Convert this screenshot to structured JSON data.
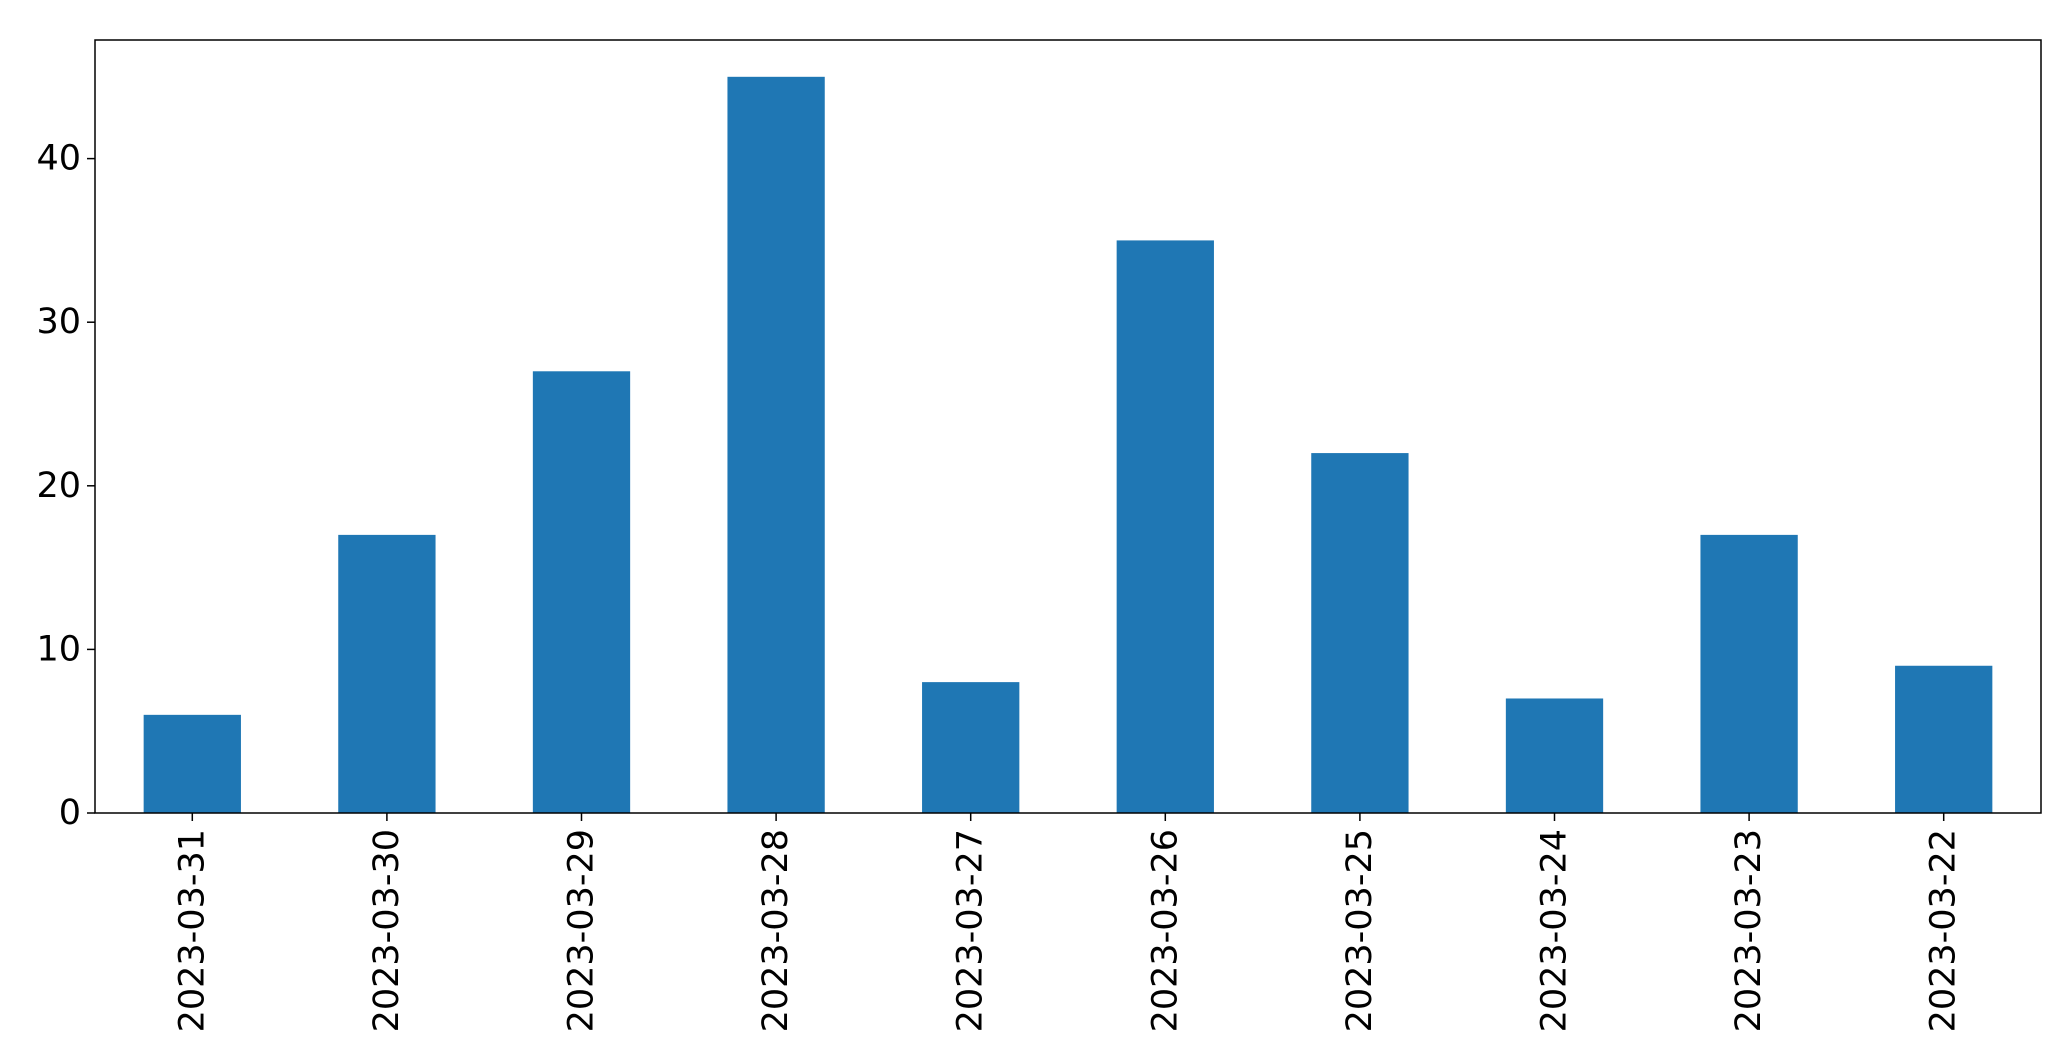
{
  "chart_data": {
    "type": "bar",
    "title": "",
    "xlabel": "",
    "ylabel": "",
    "categories": [
      "2023-03-31",
      "2023-03-30",
      "2023-03-29",
      "2023-03-28",
      "2023-03-27",
      "2023-03-26",
      "2023-03-25",
      "2023-03-24",
      "2023-03-23",
      "2023-03-22"
    ],
    "values": [
      6,
      17,
      27,
      45,
      8,
      35,
      22,
      7,
      17,
      9
    ],
    "ylim": [
      0,
      47.25
    ],
    "yticks": [
      0,
      10,
      20,
      30,
      40
    ],
    "grid": false,
    "legend": "none",
    "x_tick_rotation": "vertical",
    "bar_color": "#1f77b4",
    "axes_color": "#000000",
    "background": "#ffffff"
  }
}
